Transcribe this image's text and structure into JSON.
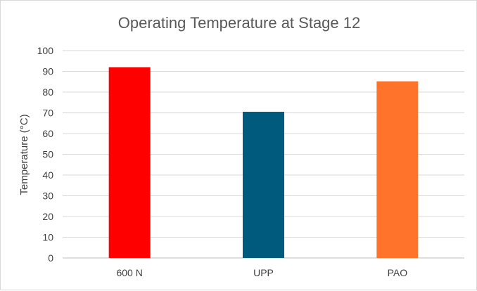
{
  "chart_data": {
    "type": "bar",
    "title": "Operating Temperature at Stage 12",
    "xlabel": "",
    "ylabel": "Temperature (°C)",
    "categories": [
      "600 N",
      "UPP",
      "PAO"
    ],
    "values": [
      92,
      70.5,
      85.2
    ],
    "bar_colors": [
      "#ff0000",
      "#005a7d",
      "#ff732a"
    ],
    "ylim": [
      0,
      100
    ],
    "yticks": [
      0,
      10,
      20,
      30,
      40,
      50,
      60,
      70,
      80,
      90,
      100
    ],
    "grid": true,
    "legend": "none"
  }
}
